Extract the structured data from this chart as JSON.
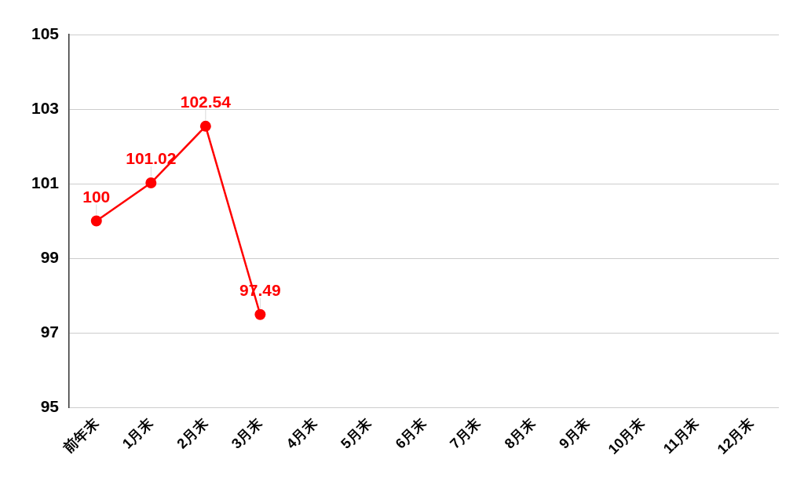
{
  "chart_data": {
    "type": "line",
    "categories": [
      "前年末",
      "1月末",
      "2月末",
      "3月末",
      "4月末",
      "5月末",
      "6月末",
      "7月末",
      "8月末",
      "9月末",
      "10月末",
      "11月末",
      "12月末"
    ],
    "series": [
      {
        "color": "#ff0000",
        "values": [
          100,
          101.02,
          102.54,
          97.49,
          null,
          null,
          null,
          null,
          null,
          null,
          null,
          null,
          null
        ]
      }
    ],
    "ylim": [
      95,
      105
    ],
    "yticks": [
      95,
      97,
      99,
      101,
      103,
      105
    ],
    "grid": "y",
    "marker": "circle",
    "line_style": "solid",
    "data_labels": true
  }
}
